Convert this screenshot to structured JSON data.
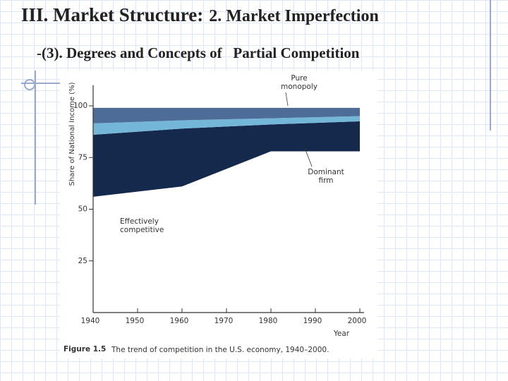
{
  "slide": {
    "title_main": "III. Market Structure:",
    "title_sub": "2. Market Imperfection",
    "subtitle": "-(3). Degrees and Concepts of   Partial Competition"
  },
  "chart_data": {
    "type": "stacked-area",
    "y_label": "Share of National Income (%)",
    "x_label": "Year",
    "caption_label": "Figure 1.5",
    "caption": "The trend of competition in the U.S. economy, 1940–2000.",
    "x": [
      1940,
      1960,
      1980,
      2000
    ],
    "series": [
      {
        "name": "Effectively competitive",
        "color": "#ffffff",
        "values": [
          56,
          61,
          78,
          78
        ]
      },
      {
        "name": "Dominant firm",
        "color": "#15294c",
        "values": [
          30,
          28,
          13,
          14.5
        ]
      },
      {
        "color": "#74b6d8",
        "values": [
          5.5,
          4,
          3,
          2.5
        ]
      },
      {
        "name": "Pure monopoly",
        "color": "#4d6c97",
        "values": [
          7.5,
          6,
          5,
          4
        ]
      }
    ],
    "xlim": [
      1940,
      2000
    ],
    "xticks": [
      1940,
      1950,
      1960,
      1970,
      1980,
      1990,
      2000
    ],
    "ylim": [
      0,
      110
    ],
    "yticks": [
      25,
      50,
      75,
      100
    ]
  }
}
